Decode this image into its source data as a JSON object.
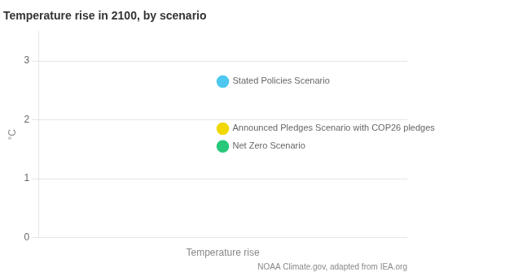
{
  "chart_data": {
    "type": "scatter",
    "title": "Temperature rise in 2100, by scenario",
    "ylabel": "°C",
    "xlabel": "Temperature rise",
    "annotations": [
      "NOAA Climate.gov, adapted from IEA.org"
    ],
    "series": [
      {
        "name": "Stated Policies Scenario",
        "color": "#4DC8F0",
        "values": [
          2.65
        ]
      },
      {
        "name": "Announced Pledges Scenario with COP26 pledges",
        "color": "#F0D800",
        "values": [
          1.85
        ]
      },
      {
        "name": "Net Zero Scenario",
        "color": "#28C87A",
        "values": [
          1.55
        ]
      }
    ],
    "ylim": [
      0,
      3.5
    ],
    "yticks": [
      0,
      1,
      2,
      3
    ],
    "grid": true,
    "tick_labels": "y"
  }
}
